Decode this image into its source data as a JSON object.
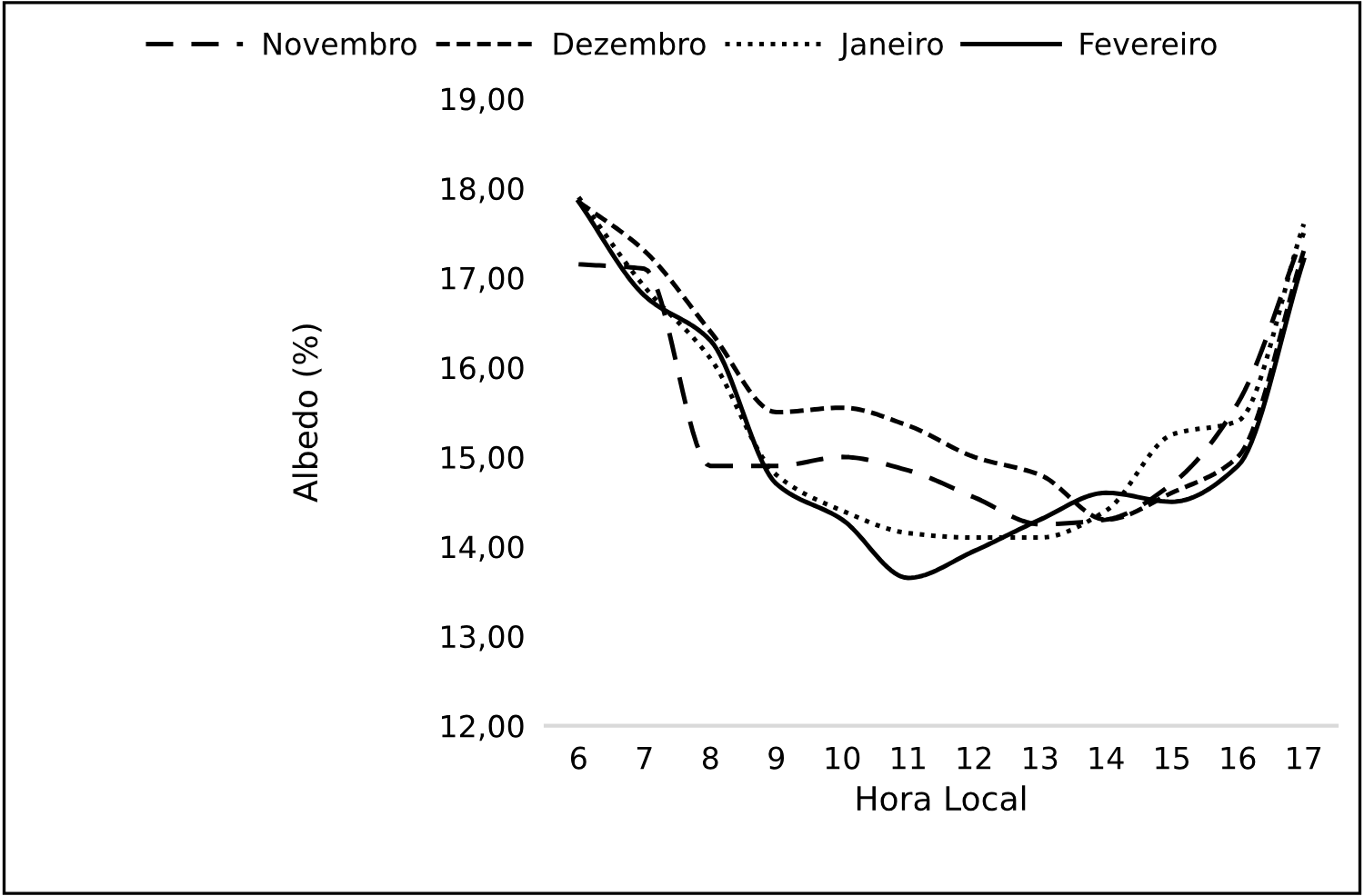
{
  "chart_data": {
    "type": "line",
    "xlabel": "Hora Local",
    "ylabel": "Albedo (%)",
    "categories": [
      "6",
      "7",
      "8",
      "9",
      "10",
      "11",
      "12",
      "13",
      "14",
      "15",
      "16",
      "17"
    ],
    "series": [
      {
        "name": "Novembro",
        "color": "#000000",
        "line_style": "dashed",
        "values": [
          17.15,
          17.1,
          14.9,
          14.9,
          15.0,
          14.85,
          14.55,
          14.25,
          14.3,
          14.7,
          15.6,
          17.5
        ]
      },
      {
        "name": "Dezembro",
        "color": "#000000",
        "line_style": "dashdot",
        "values": [
          17.85,
          17.3,
          16.4,
          15.5,
          15.55,
          15.35,
          15.0,
          14.8,
          14.3,
          14.6,
          15.0,
          17.3
        ]
      },
      {
        "name": "Janeiro",
        "color": "#000000",
        "line_style": "dotted",
        "values": [
          17.9,
          16.9,
          16.1,
          14.8,
          14.4,
          14.15,
          14.1,
          14.1,
          14.4,
          15.25,
          15.4,
          17.6
        ]
      },
      {
        "name": "Fevereiro",
        "color": "#000000",
        "line_style": "solid",
        "values": [
          17.85,
          16.8,
          16.3,
          14.7,
          14.3,
          13.65,
          13.95,
          14.3,
          14.6,
          14.5,
          14.9,
          17.2
        ]
      }
    ],
    "ylim": [
      12,
      19
    ],
    "yticks": [
      {
        "value": 12,
        "label": "12,00"
      },
      {
        "value": 13,
        "label": "13,00"
      },
      {
        "value": 14,
        "label": "14,00"
      },
      {
        "value": 15,
        "label": "15,00"
      },
      {
        "value": 16,
        "label": "16,00"
      },
      {
        "value": 17,
        "label": "17,00"
      },
      {
        "value": 18,
        "label": "18,00"
      },
      {
        "value": 19,
        "label": "19,00"
      }
    ],
    "grid": false,
    "legend": "top",
    "marker": "none"
  }
}
